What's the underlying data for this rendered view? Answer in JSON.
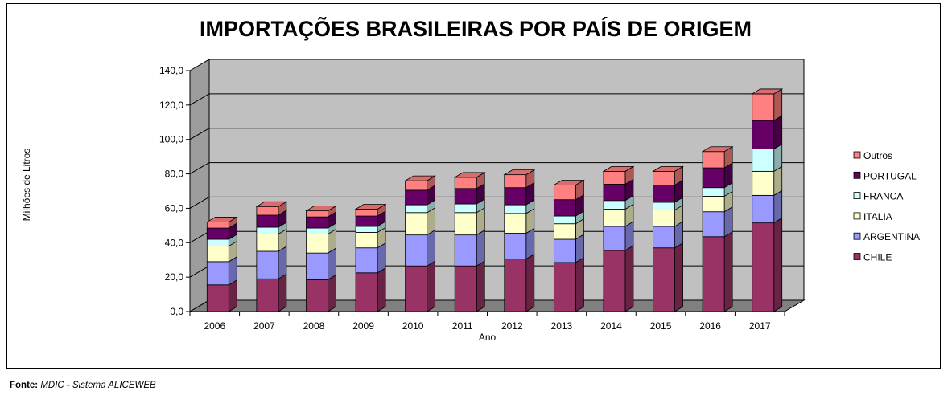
{
  "chart_data": {
    "type": "bar",
    "stacked": true,
    "title": "IMPORTAÇÕES BRASILEIRAS POR PAÍS DE ORIGEM",
    "xlabel": "Ano",
    "ylabel": "Milhões de Litros",
    "ylim": [
      0,
      140
    ],
    "ytick_labels": [
      "0,0",
      "20,0",
      "40,0",
      "60,0",
      "80,0",
      "100,0",
      "120,0",
      "140,0"
    ],
    "categories": [
      "2006",
      "2007",
      "2008",
      "2009",
      "2010",
      "2011",
      "2012",
      "2013",
      "2014",
      "2015",
      "2016",
      "2017"
    ],
    "legend_position": "right",
    "series": [
      {
        "name": "CHILE",
        "color": "#993366",
        "values": [
          15.5,
          19.0,
          18.5,
          22.5,
          26.5,
          26.5,
          30.5,
          28.5,
          35.5,
          37.0,
          43.5,
          51.5
        ]
      },
      {
        "name": "ARGENTINA",
        "color": "#9999FF",
        "values": [
          13.5,
          16.0,
          15.5,
          14.5,
          18.0,
          18.0,
          15.0,
          13.5,
          14.0,
          12.5,
          14.5,
          16.0
        ]
      },
      {
        "name": "ITALIA",
        "color": "#FFFFCC",
        "values": [
          9.0,
          10.0,
          11.0,
          9.0,
          13.0,
          13.0,
          11.5,
          9.0,
          10.0,
          9.5,
          9.0,
          14.0
        ]
      },
      {
        "name": "FRANCA",
        "color": "#CCFFFF",
        "values": [
          4.0,
          4.0,
          3.5,
          3.5,
          4.5,
          5.0,
          5.0,
          4.5,
          5.0,
          4.5,
          5.0,
          13.0
        ]
      },
      {
        "name": "PORTUGAL",
        "color": "#660066",
        "values": [
          6.5,
          7.0,
          6.5,
          6.0,
          8.5,
          9.0,
          10.0,
          9.5,
          9.5,
          10.0,
          11.5,
          16.5
        ]
      },
      {
        "name": "Outros",
        "color": "#FF8080",
        "values": [
          3.5,
          5.0,
          3.5,
          4.0,
          5.5,
          6.5,
          7.5,
          8.5,
          7.5,
          8.0,
          9.5,
          15.5
        ]
      }
    ],
    "colors": {
      "wall": "#C0C0C0",
      "floor": "#808080",
      "gridline": "#000000"
    }
  },
  "footer": {
    "label": "Fonte:",
    "source": "MDIC - Sistema ALICEWEB"
  }
}
